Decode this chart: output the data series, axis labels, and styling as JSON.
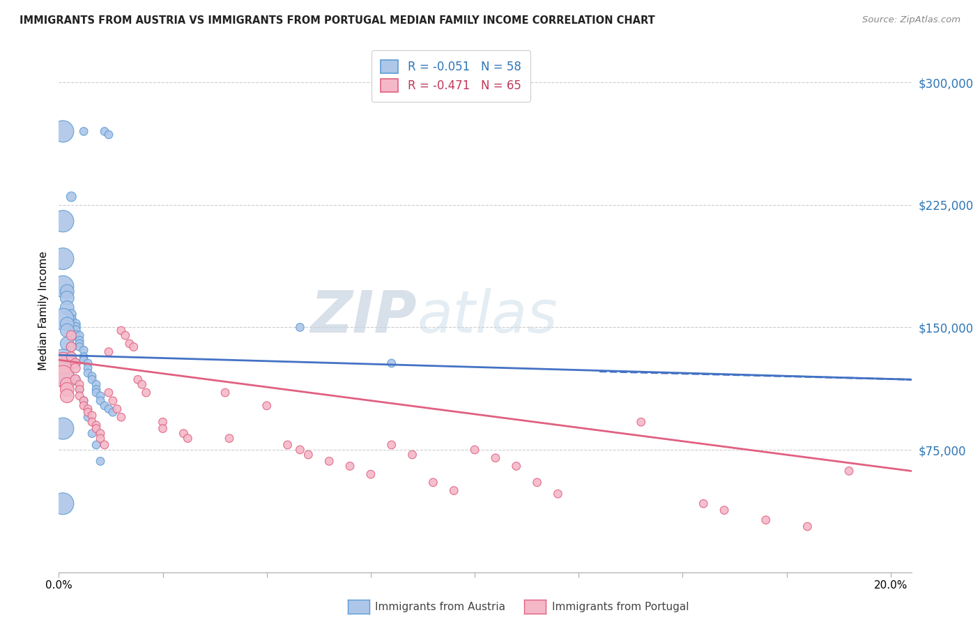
{
  "title": "IMMIGRANTS FROM AUSTRIA VS IMMIGRANTS FROM PORTUGAL MEDIAN FAMILY INCOME CORRELATION CHART",
  "source": "Source: ZipAtlas.com",
  "ylabel": "Median Family Income",
  "xlim": [
    0.0,
    0.205
  ],
  "ylim": [
    0,
    320000
  ],
  "yticks": [
    0,
    75000,
    150000,
    225000,
    300000
  ],
  "ytick_labels": [
    "",
    "$75,000",
    "$150,000",
    "$225,000",
    "$300,000"
  ],
  "xticks": [
    0.0,
    0.025,
    0.05,
    0.075,
    0.1,
    0.125,
    0.15,
    0.175,
    0.2
  ],
  "legend_austria": "R = -0.051   N = 58",
  "legend_portugal": "R = -0.471   N = 65",
  "color_austria_fill": "#aec6e8",
  "color_portugal_fill": "#f4b8c8",
  "color_austria_edge": "#5b9bd5",
  "color_portugal_edge": "#e06080",
  "color_austria_text": "#2e75b6",
  "color_portugal_text": "#c0385a",
  "color_austria_line": "#4472c4",
  "color_portugal_line": "#e06080",
  "watermark_zip": "ZIP",
  "watermark_atlas": "atlas",
  "austria_line_x": [
    0.0,
    0.205
  ],
  "austria_line_y": [
    133000,
    118000
  ],
  "portugal_line_x": [
    0.0,
    0.205
  ],
  "portugal_line_y": [
    130000,
    62000
  ],
  "austria_x": [
    0.001,
    0.006,
    0.011,
    0.012,
    0.001,
    0.003,
    0.001,
    0.001,
    0.002,
    0.002,
    0.002,
    0.003,
    0.003,
    0.003,
    0.004,
    0.004,
    0.004,
    0.004,
    0.005,
    0.005,
    0.005,
    0.005,
    0.006,
    0.006,
    0.006,
    0.007,
    0.007,
    0.007,
    0.008,
    0.008,
    0.009,
    0.009,
    0.009,
    0.01,
    0.01,
    0.011,
    0.012,
    0.013,
    0.001,
    0.002,
    0.002,
    0.002,
    0.003,
    0.003,
    0.004,
    0.004,
    0.005,
    0.006,
    0.007,
    0.008,
    0.009,
    0.01,
    0.058,
    0.08,
    0.001,
    0.001,
    0.001,
    0.001
  ],
  "austria_y": [
    270000,
    270000,
    270000,
    268000,
    215000,
    230000,
    192000,
    175000,
    172000,
    168000,
    162000,
    158000,
    155000,
    152000,
    152000,
    150000,
    148000,
    145000,
    145000,
    142000,
    140000,
    138000,
    136000,
    132000,
    130000,
    128000,
    125000,
    122000,
    120000,
    118000,
    115000,
    112000,
    110000,
    108000,
    105000,
    102000,
    100000,
    98000,
    155000,
    152000,
    148000,
    140000,
    138000,
    132000,
    128000,
    118000,
    112000,
    105000,
    95000,
    85000,
    78000,
    68000,
    150000,
    128000,
    130000,
    122000,
    88000,
    42000
  ],
  "portugal_x": [
    0.001,
    0.001,
    0.002,
    0.002,
    0.002,
    0.003,
    0.003,
    0.003,
    0.004,
    0.004,
    0.004,
    0.005,
    0.005,
    0.005,
    0.006,
    0.006,
    0.007,
    0.007,
    0.008,
    0.008,
    0.009,
    0.009,
    0.01,
    0.01,
    0.011,
    0.012,
    0.012,
    0.013,
    0.014,
    0.015,
    0.015,
    0.016,
    0.017,
    0.018,
    0.019,
    0.02,
    0.021,
    0.025,
    0.025,
    0.03,
    0.031,
    0.04,
    0.041,
    0.05,
    0.055,
    0.058,
    0.06,
    0.065,
    0.07,
    0.075,
    0.08,
    0.085,
    0.09,
    0.095,
    0.1,
    0.105,
    0.11,
    0.115,
    0.12,
    0.14,
    0.155,
    0.16,
    0.17,
    0.18,
    0.19
  ],
  "portugal_y": [
    128000,
    120000,
    115000,
    112000,
    108000,
    145000,
    138000,
    132000,
    128000,
    125000,
    118000,
    115000,
    112000,
    108000,
    105000,
    102000,
    100000,
    98000,
    96000,
    92000,
    90000,
    88000,
    85000,
    82000,
    78000,
    135000,
    110000,
    105000,
    100000,
    95000,
    148000,
    145000,
    140000,
    138000,
    118000,
    115000,
    110000,
    92000,
    88000,
    85000,
    82000,
    110000,
    82000,
    102000,
    78000,
    75000,
    72000,
    68000,
    65000,
    60000,
    78000,
    72000,
    55000,
    50000,
    75000,
    70000,
    65000,
    55000,
    48000,
    92000,
    42000,
    38000,
    32000,
    28000,
    62000
  ]
}
